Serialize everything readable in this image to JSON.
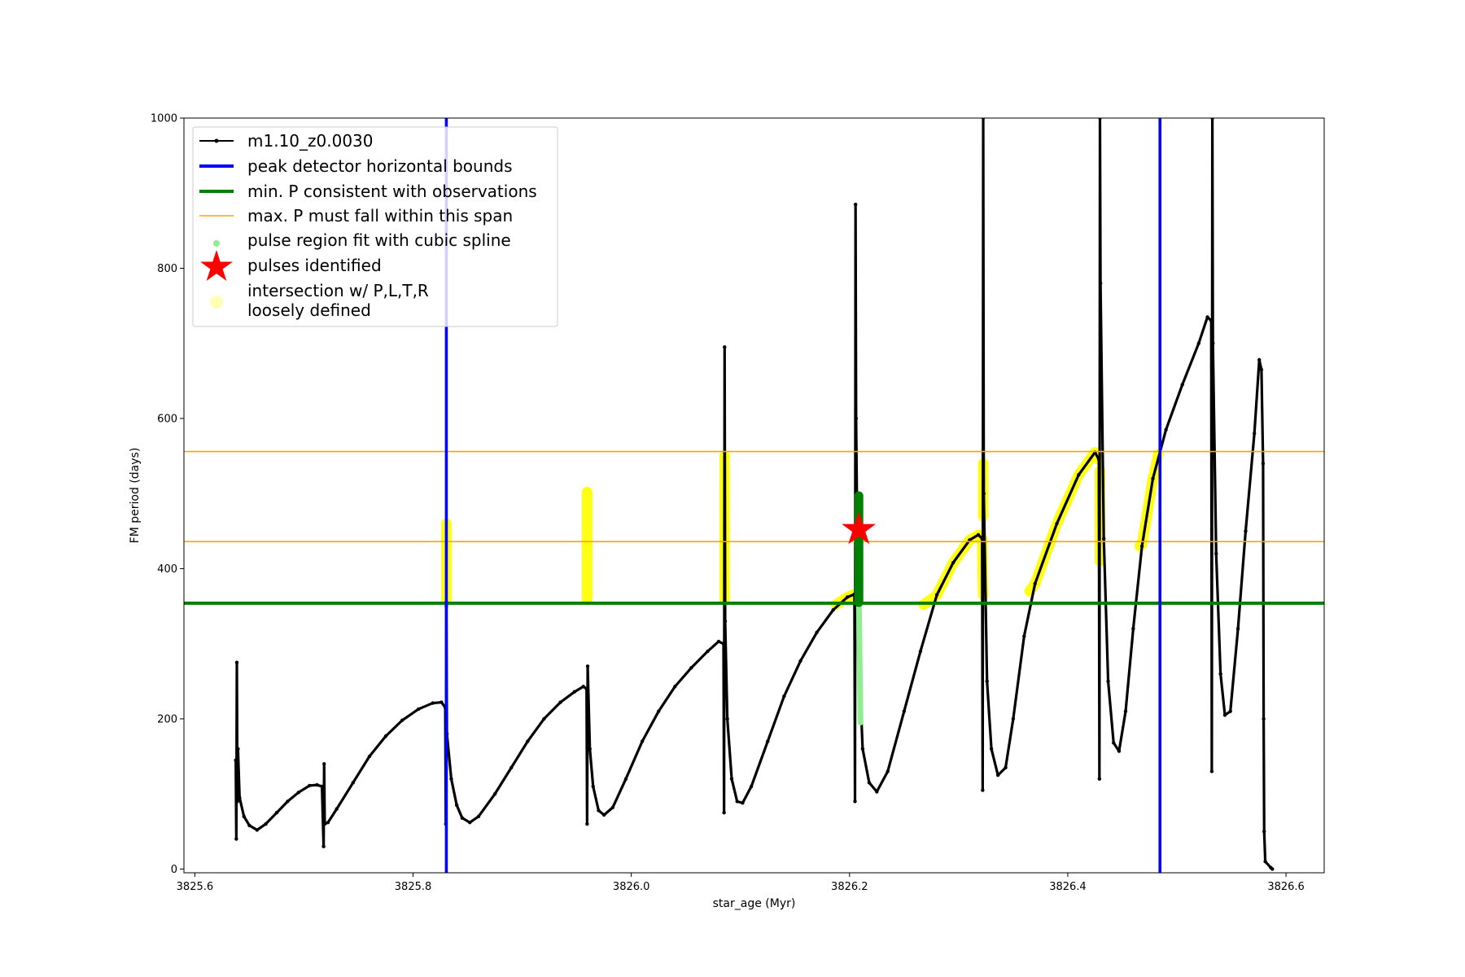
{
  "chart_data": {
    "type": "line",
    "xlabel": "star_age (Myr)",
    "ylabel": "FM period (days)",
    "xlim": [
      3825.59,
      3826.635
    ],
    "ylim": [
      -5,
      1000
    ],
    "x_ticks": [
      3825.6,
      3825.8,
      3826.0,
      3826.2,
      3826.4,
      3826.6
    ],
    "x_tick_labels": [
      "3825.6",
      "3825.8",
      "3826.0",
      "3826.2",
      "3826.4",
      "3826.6"
    ],
    "y_ticks": [
      0,
      200,
      400,
      600,
      800,
      1000
    ],
    "y_tick_labels": [
      "0",
      "200",
      "400",
      "600",
      "800",
      "1000"
    ],
    "grid": false,
    "legend_position": "top-left",
    "legend": [
      {
        "label": "m1.10_z0.0030",
        "style": "black-line-dot"
      },
      {
        "label": "peak detector horizontal bounds",
        "style": "blue-line"
      },
      {
        "label": "min. P consistent with observations",
        "style": "green-line"
      },
      {
        "label": "max. P must fall within this span",
        "style": "orange-line"
      },
      {
        "label": "pulse region fit with cubic spline",
        "style": "lightgreen-dot"
      },
      {
        "label": "pulses identified",
        "style": "red-star"
      },
      {
        "label": "intersection w/ P,L,T,R",
        "label2": "loosely defined",
        "style": "yellow-dot"
      }
    ],
    "series_main": {
      "name": "m1.10_z0.0030",
      "color": "#000000",
      "points": [
        [
          3825.6375,
          145
        ],
        [
          3825.638,
          40
        ],
        [
          3825.6385,
          275
        ],
        [
          3825.639,
          90
        ],
        [
          3825.6395,
          160
        ],
        [
          3825.641,
          95
        ],
        [
          3825.645,
          70
        ],
        [
          3825.65,
          58
        ],
        [
          3825.657,
          52
        ],
        [
          3825.665,
          60
        ],
        [
          3825.675,
          75
        ],
        [
          3825.685,
          90
        ],
        [
          3825.695,
          102
        ],
        [
          3825.705,
          111
        ],
        [
          3825.712,
          112
        ],
        [
          3825.7165,
          110
        ],
        [
          3825.718,
          30
        ],
        [
          3825.7185,
          140
        ],
        [
          3825.719,
          60
        ],
        [
          3825.722,
          62
        ],
        [
          3825.73,
          80
        ],
        [
          3825.745,
          115
        ],
        [
          3825.76,
          150
        ],
        [
          3825.775,
          177
        ],
        [
          3825.79,
          198
        ],
        [
          3825.805,
          213
        ],
        [
          3825.818,
          221
        ],
        [
          3825.826,
          222
        ],
        [
          3825.8295,
          215
        ],
        [
          3825.83,
          60
        ],
        [
          3825.8305,
          350
        ],
        [
          3825.831,
          180
        ],
        [
          3825.835,
          120
        ],
        [
          3825.84,
          85
        ],
        [
          3825.845,
          68
        ],
        [
          3825.852,
          62
        ],
        [
          3825.86,
          70
        ],
        [
          3825.875,
          100
        ],
        [
          3825.89,
          135
        ],
        [
          3825.905,
          170
        ],
        [
          3825.92,
          200
        ],
        [
          3825.935,
          222
        ],
        [
          3825.948,
          236
        ],
        [
          3825.956,
          243
        ],
        [
          3825.959,
          240
        ],
        [
          3825.9595,
          60
        ],
        [
          3825.96,
          270
        ],
        [
          3825.962,
          160
        ],
        [
          3825.965,
          110
        ],
        [
          3825.97,
          78
        ],
        [
          3825.975,
          72
        ],
        [
          3825.983,
          82
        ],
        [
          3825.995,
          120
        ],
        [
          3826.01,
          170
        ],
        [
          3826.025,
          210
        ],
        [
          3826.04,
          243
        ],
        [
          3826.055,
          268
        ],
        [
          3826.07,
          290
        ],
        [
          3826.08,
          303
        ],
        [
          3826.0845,
          300
        ],
        [
          3826.085,
          75
        ],
        [
          3826.0855,
          695
        ],
        [
          3826.086,
          330
        ],
        [
          3826.088,
          200
        ],
        [
          3826.092,
          120
        ],
        [
          3826.097,
          90
        ],
        [
          3826.102,
          88
        ],
        [
          3826.11,
          110
        ],
        [
          3826.125,
          170
        ],
        [
          3826.14,
          230
        ],
        [
          3826.155,
          277
        ],
        [
          3826.17,
          315
        ],
        [
          3826.185,
          345
        ],
        [
          3826.198,
          362
        ],
        [
          3826.2045,
          366
        ],
        [
          3826.205,
          90
        ],
        [
          3826.2055,
          885
        ],
        [
          3826.206,
          600
        ],
        [
          3826.208,
          300
        ],
        [
          3826.212,
          160
        ],
        [
          3826.218,
          115
        ],
        [
          3826.225,
          103
        ],
        [
          3826.235,
          130
        ],
        [
          3826.25,
          210
        ],
        [
          3826.265,
          290
        ],
        [
          3826.28,
          365
        ],
        [
          3826.295,
          408
        ],
        [
          3826.31,
          438
        ],
        [
          3826.318,
          445
        ],
        [
          3826.3215,
          440
        ],
        [
          3826.322,
          105
        ],
        [
          3826.3225,
          1000
        ],
        [
          3826.323,
          500
        ],
        [
          3826.326,
          250
        ],
        [
          3826.33,
          160
        ],
        [
          3826.336,
          125
        ],
        [
          3826.343,
          135
        ],
        [
          3826.35,
          200
        ],
        [
          3826.36,
          310
        ],
        [
          3826.37,
          380
        ],
        [
          3826.39,
          460
        ],
        [
          3826.41,
          525
        ],
        [
          3826.425,
          555
        ],
        [
          3826.4285,
          545
        ],
        [
          3826.429,
          120
        ],
        [
          3826.4295,
          1000
        ],
        [
          3826.43,
          780
        ],
        [
          3826.433,
          440
        ],
        [
          3826.437,
          250
        ],
        [
          3826.442,
          168
        ],
        [
          3826.447,
          157
        ],
        [
          3826.453,
          210
        ],
        [
          3826.46,
          320
        ],
        [
          3826.468,
          430
        ],
        [
          3826.478,
          520
        ],
        [
          3826.49,
          585
        ],
        [
          3826.505,
          645
        ],
        [
          3826.52,
          700
        ],
        [
          3826.528,
          735
        ],
        [
          3826.5315,
          730
        ],
        [
          3826.532,
          130
        ],
        [
          3826.5325,
          1000
        ],
        [
          3826.533,
          700
        ],
        [
          3826.536,
          420
        ],
        [
          3826.54,
          260
        ],
        [
          3826.544,
          205
        ],
        [
          3826.549,
          210
        ],
        [
          3826.556,
          320
        ],
        [
          3826.563,
          450
        ],
        [
          3826.571,
          580
        ],
        [
          3826.5755,
          678
        ],
        [
          3826.5775,
          665
        ],
        [
          3826.579,
          540
        ],
        [
          3826.5795,
          200
        ],
        [
          3826.58,
          50
        ],
        [
          3826.581,
          10
        ],
        [
          3826.586,
          2
        ],
        [
          3826.5875,
          0
        ]
      ]
    },
    "vertical_lines": {
      "color": "#0000ff",
      "x": [
        3825.8305,
        3826.4845
      ]
    },
    "min_period_line": {
      "color": "#008000",
      "y": 354
    },
    "max_period_lines": {
      "color": "#ffa500",
      "y": [
        436,
        556
      ]
    },
    "pulse_spline_region": {
      "color": "#90ee90",
      "x": 3826.2085,
      "y_range": [
        195,
        360
      ]
    },
    "pulse_fit_dark": {
      "color": "#008000",
      "x": 3826.2085,
      "y_range": [
        355,
        497
      ]
    },
    "pulse_identified": {
      "color": "#ff0000",
      "x": 3826.2085,
      "y": 452
    },
    "yellow_regions": {
      "color": "#ffff00",
      "segments": [
        [
          [
            3825.8305,
            358
          ],
          [
            3825.8305,
            460
          ]
        ],
        [
          [
            3825.9595,
            358
          ],
          [
            3825.9595,
            502
          ]
        ],
        [
          [
            3826.0855,
            358
          ],
          [
            3826.0855,
            550
          ]
        ],
        [
          [
            3826.1875,
            352
          ],
          [
            3826.198,
            362
          ],
          [
            3826.2045,
            366
          ]
        ],
        [
          [
            3826.268,
            352
          ],
          [
            3826.28,
            365
          ],
          [
            3826.295,
            408
          ],
          [
            3826.31,
            438
          ],
          [
            3826.318,
            445
          ],
          [
            3826.3215,
            440
          ],
          [
            3826.3225,
            365
          ]
        ],
        [
          [
            3826.3225,
            470
          ],
          [
            3826.3225,
            540
          ]
        ],
        [
          [
            3826.365,
            370
          ],
          [
            3826.37,
            380
          ],
          [
            3826.39,
            460
          ],
          [
            3826.41,
            525
          ],
          [
            3826.425,
            555
          ],
          [
            3826.4285,
            545
          ]
        ],
        [
          [
            3826.4295,
            410
          ],
          [
            3826.4295,
            530
          ]
        ],
        [
          [
            3826.466,
            430
          ],
          [
            3826.468,
            432
          ],
          [
            3826.478,
            520
          ],
          [
            3826.483,
            552
          ]
        ]
      ]
    }
  }
}
